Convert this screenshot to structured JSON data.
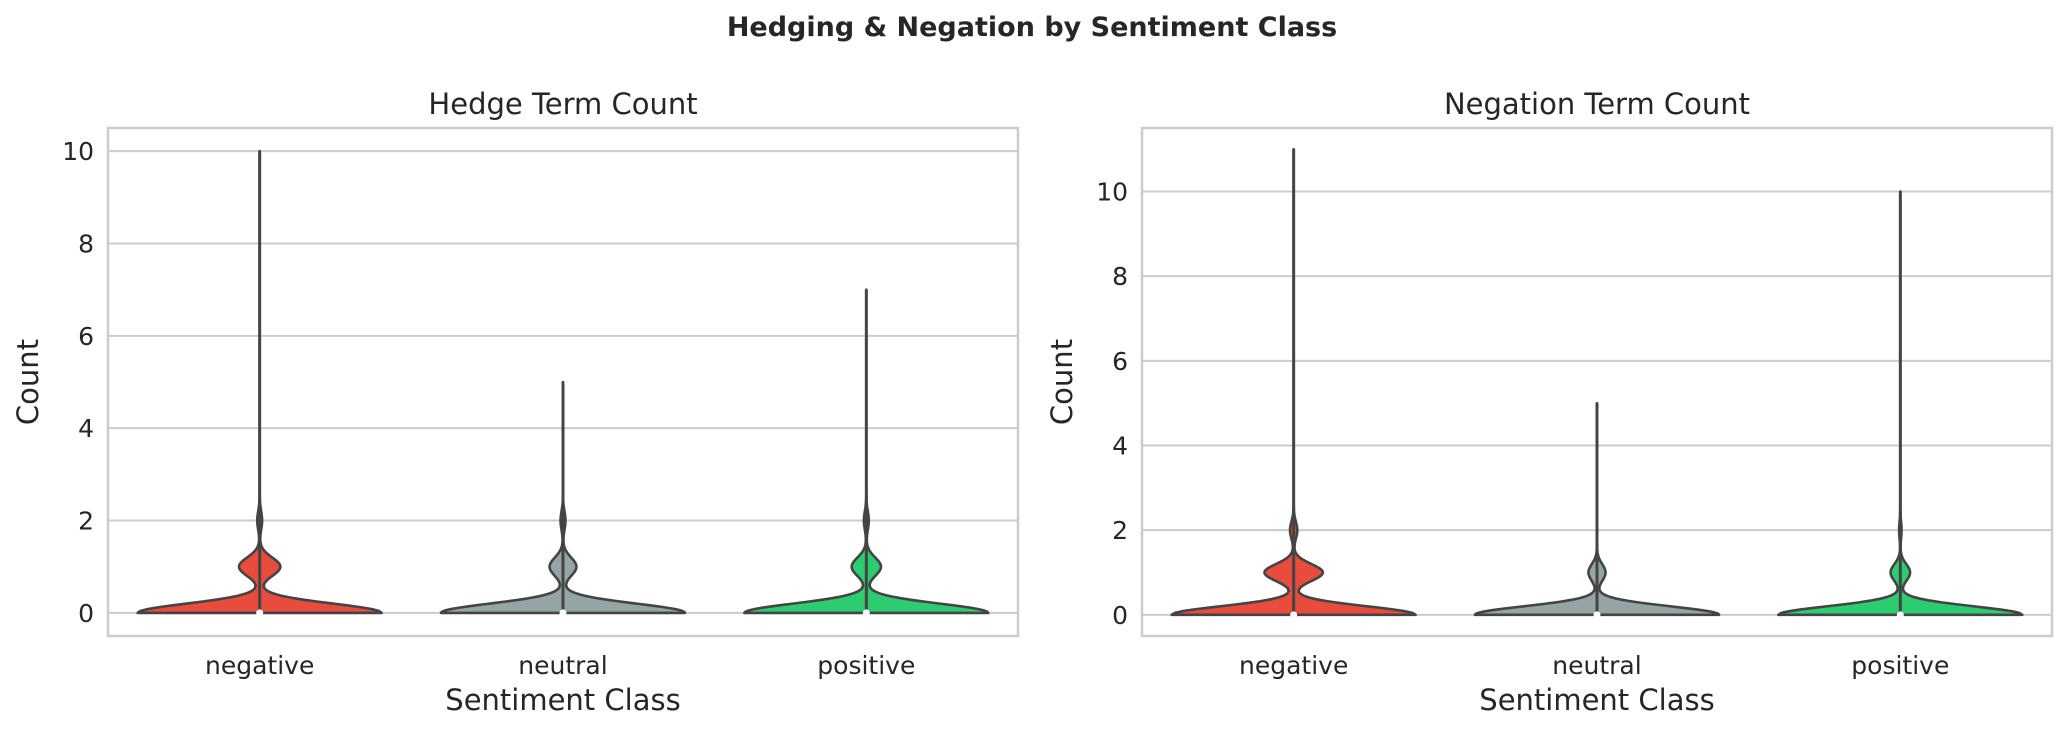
{
  "figure_title": "Hedging & Negation by Sentiment Class",
  "colors": {
    "negative": "#e74c3c",
    "neutral": "#95a5a6",
    "positive": "#2ecc71",
    "edge": "#444444",
    "grid": "#cccccc",
    "text": "#262626"
  },
  "chart_data": [
    {
      "type": "violin",
      "title": "Hedge Term Count",
      "xlabel": "Sentiment Class",
      "ylabel": "Count",
      "categories": [
        "negative",
        "neutral",
        "positive"
      ],
      "ylim": [
        -0.5,
        10.5
      ],
      "yticks": [
        0,
        2,
        4,
        6,
        8,
        10
      ],
      "grid": true,
      "series": [
        {
          "category": "negative",
          "min": 0,
          "max": 10,
          "median": 0,
          "mode_peaks": [
            {
              "y": 0,
              "density": 1.0
            },
            {
              "y": 1,
              "density": 0.17
            },
            {
              "y": 2,
              "density": 0.02
            }
          ]
        },
        {
          "category": "neutral",
          "min": 0,
          "max": 5,
          "median": 0,
          "mode_peaks": [
            {
              "y": 0,
              "density": 1.0
            },
            {
              "y": 1,
              "density": 0.11
            },
            {
              "y": 2,
              "density": 0.02
            }
          ]
        },
        {
          "category": "positive",
          "min": 0,
          "max": 7,
          "median": 0,
          "mode_peaks": [
            {
              "y": 0,
              "density": 1.0
            },
            {
              "y": 1,
              "density": 0.12
            },
            {
              "y": 2,
              "density": 0.02
            }
          ]
        }
      ]
    },
    {
      "type": "violin",
      "title": "Negation Term Count",
      "xlabel": "Sentiment Class",
      "ylabel": "Count",
      "categories": [
        "negative",
        "neutral",
        "positive"
      ],
      "ylim": [
        -0.5,
        11.5
      ],
      "yticks": [
        0,
        2,
        4,
        6,
        8,
        10
      ],
      "grid": true,
      "series": [
        {
          "category": "negative",
          "min": 0,
          "max": 11,
          "median": 0,
          "mode_peaks": [
            {
              "y": 0,
              "density": 1.0
            },
            {
              "y": 1,
              "density": 0.24
            },
            {
              "y": 2,
              "density": 0.03
            }
          ]
        },
        {
          "category": "neutral",
          "min": 0,
          "max": 5,
          "median": 0,
          "mode_peaks": [
            {
              "y": 0,
              "density": 1.0
            },
            {
              "y": 1,
              "density": 0.07
            }
          ]
        },
        {
          "category": "positive",
          "min": 0,
          "max": 10,
          "median": 0,
          "mode_peaks": [
            {
              "y": 0,
              "density": 1.0
            },
            {
              "y": 1,
              "density": 0.08
            },
            {
              "y": 2,
              "density": 0.01
            }
          ]
        }
      ]
    }
  ]
}
